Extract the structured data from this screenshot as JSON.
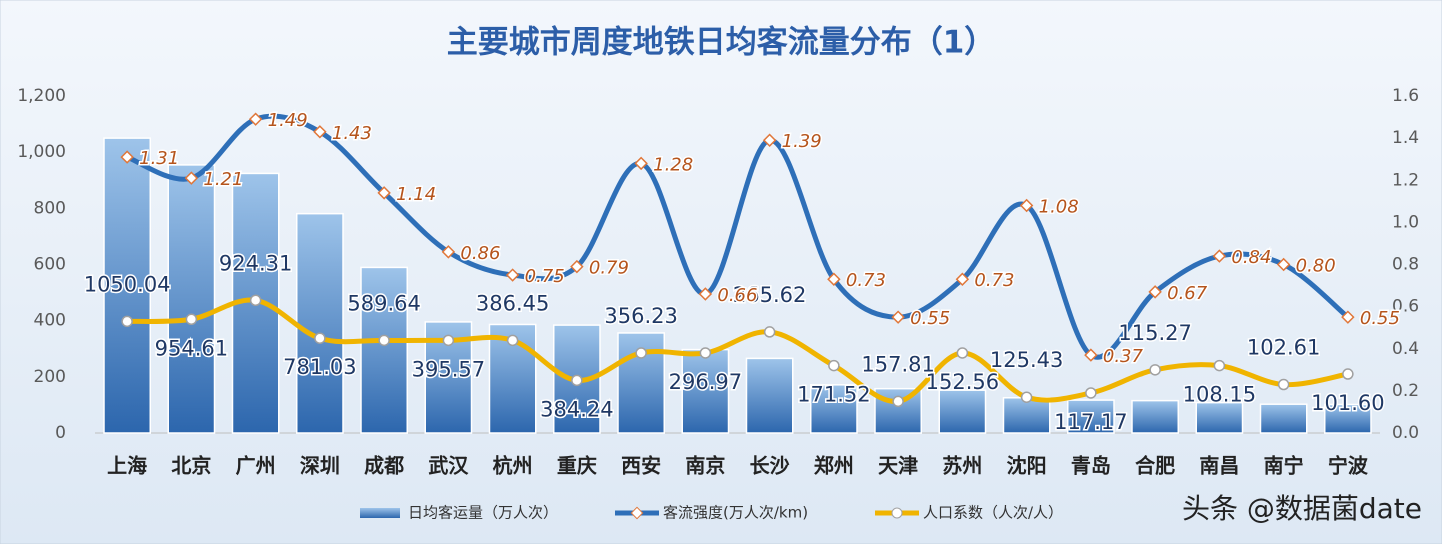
{
  "chart_data": {
    "type": "bar-line",
    "title": "主要城市周度地铁日均客流量分布（1）",
    "categories": [
      "上海",
      "北京",
      "广州",
      "深圳",
      "成都",
      "武汉",
      "杭州",
      "重庆",
      "西安",
      "南京",
      "长沙",
      "郑州",
      "天津",
      "苏州",
      "沈阳",
      "青岛",
      "合肥",
      "南昌",
      "南宁",
      "宁波"
    ],
    "series": [
      {
        "name": "日均客运量（万人次）",
        "type": "bar",
        "color": "#3f7fc0",
        "values": [
          1050.04,
          954.61,
          924.31,
          781.03,
          589.64,
          395.57,
          386.45,
          384.24,
          356.23,
          296.97,
          265.62,
          171.52,
          157.81,
          152.56,
          125.43,
          117.17,
          115.27,
          108.15,
          102.61,
          101.6
        ],
        "value_labels": [
          "1050.04",
          "954.61",
          "924.31",
          "781.03",
          "589.64",
          "395.57",
          "386.45",
          "384.24",
          "356.23",
          "296.97",
          "265.62",
          "171.52",
          "157.81",
          "152.56",
          "125.43",
          "117.17",
          "115.27",
          "108.15",
          "102.61",
          "101.60"
        ]
      },
      {
        "name": "客流强度(万人次/km)",
        "type": "line",
        "axis": "y2",
        "color": "#2e6fb8",
        "values": [
          1.31,
          1.21,
          1.49,
          1.43,
          1.14,
          0.86,
          0.75,
          0.79,
          1.28,
          0.66,
          1.39,
          0.73,
          0.55,
          0.73,
          1.08,
          0.37,
          0.67,
          0.84,
          0.8,
          0.55
        ],
        "value_labels": [
          "1.31",
          "1.21",
          "1.49",
          "1.43",
          "1.14",
          "0.86",
          "0.75",
          "0.79",
          "1.28",
          "0.66",
          "1.39",
          "0.73",
          "0.55",
          "0.73",
          "1.08",
          "0.37",
          "0.67",
          "0.84",
          "0.80",
          "0.55"
        ]
      },
      {
        "name": "人口系数（人次/人）",
        "type": "line",
        "axis": "y2",
        "color": "#f0b400",
        "values": [
          0.53,
          0.54,
          0.63,
          0.45,
          0.44,
          0.44,
          0.44,
          0.25,
          0.38,
          0.38,
          0.48,
          0.32,
          0.15,
          0.38,
          0.17,
          0.19,
          0.3,
          0.32,
          0.23,
          0.28
        ]
      }
    ],
    "ylim": [
      0,
      1200
    ],
    "yticks": [
      0,
      200,
      400,
      600,
      800,
      {
        "value": 1000,
        "label": "1,000"
      },
      {
        "value": 1200,
        "label": "1,200"
      }
    ],
    "y2lim": [
      0,
      1.6
    ],
    "y2ticks": [
      {
        "value": 0,
        "label": "0.0"
      },
      0.2,
      0.4,
      0.6,
      0.8,
      {
        "value": 1,
        "label": "1.0"
      },
      1.2,
      1.4,
      1.6
    ],
    "grid": false,
    "legend": "bottom"
  },
  "watermark": "头条 @数据菌date"
}
